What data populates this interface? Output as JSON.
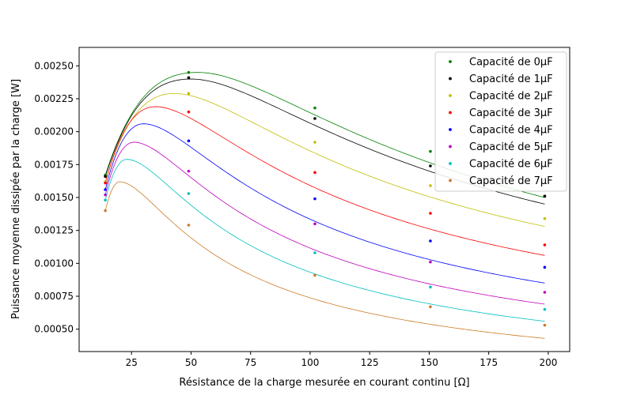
{
  "chart_data": {
    "type": "scatter",
    "title": "",
    "xlabel": "Résistance de la charge mesurée en courant continu [Ω]",
    "ylabel": "Puissance moyenne dissipée par la charge [W]",
    "xlim": [
      3,
      209
    ],
    "ylim": [
      0.00033,
      0.00264
    ],
    "xticks": [
      25,
      50,
      75,
      100,
      125,
      150,
      175,
      200
    ],
    "xtick_labels": [
      "25",
      "50",
      "75",
      "100",
      "125",
      "150",
      "175",
      "200"
    ],
    "yticks": [
      0.0005,
      0.00075,
      0.001,
      0.00125,
      0.0015,
      0.00175,
      0.002,
      0.00225,
      0.0025
    ],
    "ytick_labels": [
      "0.00050",
      "0.00075",
      "0.00100",
      "0.00125",
      "0.00150",
      "0.00175",
      "0.00200",
      "0.00225",
      "0.00250"
    ],
    "grid": false,
    "legend_position": "top-right",
    "x": [
      14,
      49,
      102,
      150.5,
      198.5
    ],
    "series": [
      {
        "name": "Capacité de 0μF",
        "color": "#008000",
        "values": [
          0.00167,
          0.00245,
          0.00218,
          0.00185,
          0.00151
        ],
        "fit_peak_x": 53,
        "fit_peak_y": 0.00245,
        "fit_end_y": 0.0015
      },
      {
        "name": "Capacité de 1μF",
        "color": "#000000",
        "values": [
          0.00166,
          0.00241,
          0.0021,
          0.00174,
          0.00151
        ],
        "fit_peak_x": 50,
        "fit_peak_y": 0.0024,
        "fit_end_y": 0.00145
      },
      {
        "name": "Capacité de 2μF",
        "color": "#bfbf00",
        "values": [
          0.00162,
          0.00229,
          0.00192,
          0.00159,
          0.00134
        ],
        "fit_peak_x": 43,
        "fit_peak_y": 0.00229,
        "fit_end_y": 0.00128
      },
      {
        "name": "Capacité de 3μF",
        "color": "#ff0000",
        "values": [
          0.00161,
          0.00215,
          0.00169,
          0.00138,
          0.00114
        ],
        "fit_peak_x": 35,
        "fit_peak_y": 0.00219,
        "fit_end_y": 0.00106
      },
      {
        "name": "Capacité de 4μF",
        "color": "#0000ff",
        "values": [
          0.00156,
          0.00193,
          0.00149,
          0.00117,
          0.00097
        ],
        "fit_peak_x": 30,
        "fit_peak_y": 0.00206,
        "fit_end_y": 0.00085
      },
      {
        "name": "Capacité de 5μF",
        "color": "#bf00bf",
        "values": [
          0.00152,
          0.0017,
          0.0013,
          0.00101,
          0.00078
        ],
        "fit_peak_x": 26,
        "fit_peak_y": 0.00192,
        "fit_end_y": 0.00069
      },
      {
        "name": "Capacité de 6μF",
        "color": "#00bfbf",
        "values": [
          0.00148,
          0.00153,
          0.00108,
          0.00082,
          0.00065
        ],
        "fit_peak_x": 23,
        "fit_peak_y": 0.00179,
        "fit_end_y": 0.00056
      },
      {
        "name": "Capacité de 7μF",
        "color": "#cc7a29",
        "values": [
          0.0014,
          0.00129,
          0.00091,
          0.00067,
          0.00053
        ],
        "fit_peak_x": 20,
        "fit_peak_y": 0.00162,
        "fit_end_y": 0.00043
      }
    ]
  }
}
